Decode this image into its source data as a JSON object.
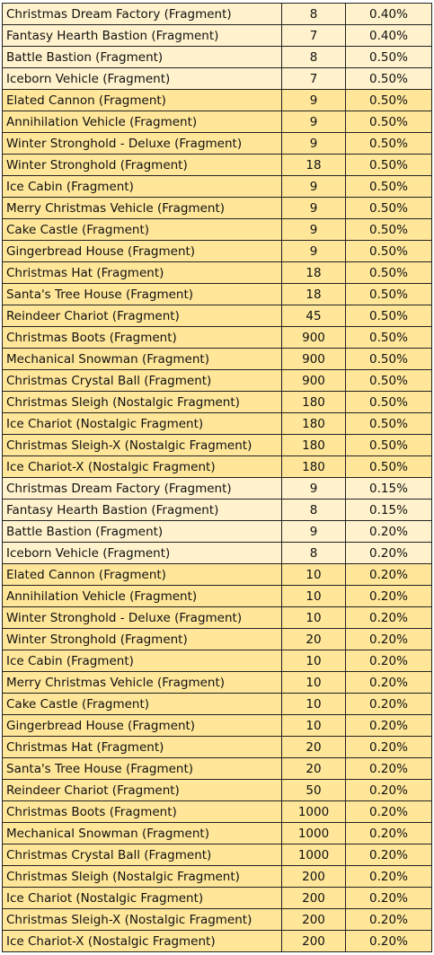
{
  "table": {
    "rows": [
      [
        "Christmas Dream Factory (Fragment)",
        "8",
        "0.40%"
      ],
      [
        "Fantasy Hearth Bastion (Fragment)",
        "7",
        "0.40%"
      ],
      [
        "Battle Bastion (Fragment)",
        "8",
        "0.50%"
      ],
      [
        "Iceborn Vehicle (Fragment)",
        "7",
        "0.50%"
      ],
      [
        "Elated Cannon (Fragment)",
        "9",
        "0.50%"
      ],
      [
        "Annihilation Vehicle (Fragment)",
        "9",
        "0.50%"
      ],
      [
        "Winter Stronghold - Deluxe (Fragment)",
        "9",
        "0.50%"
      ],
      [
        "Winter Stronghold (Fragment)",
        "18",
        "0.50%"
      ],
      [
        "Ice Cabin (Fragment)",
        "9",
        "0.50%"
      ],
      [
        "Merry Christmas Vehicle (Fragment)",
        "9",
        "0.50%"
      ],
      [
        "Cake Castle (Fragment)",
        "9",
        "0.50%"
      ],
      [
        "Gingerbread House (Fragment)",
        "9",
        "0.50%"
      ],
      [
        "Christmas Hat (Fragment)",
        "18",
        "0.50%"
      ],
      [
        "Santa's Tree House (Fragment)",
        "18",
        "0.50%"
      ],
      [
        "Reindeer Chariot (Fragment)",
        "45",
        "0.50%"
      ],
      [
        "Christmas Boots (Fragment)",
        "900",
        "0.50%"
      ],
      [
        "Mechanical Snowman (Fragment)",
        "900",
        "0.50%"
      ],
      [
        "Christmas Crystal Ball (Fragment)",
        "900",
        "0.50%"
      ],
      [
        "Christmas Sleigh (Nostalgic Fragment)",
        "180",
        "0.50%"
      ],
      [
        "Ice Chariot (Nostalgic Fragment)",
        "180",
        "0.50%"
      ],
      [
        "Christmas Sleigh-X (Nostalgic Fragment)",
        "180",
        "0.50%"
      ],
      [
        "Ice Chariot-X (Nostalgic Fragment)",
        "180",
        "0.50%"
      ],
      [
        "Christmas Dream Factory (Fragment)",
        "9",
        "0.15%"
      ],
      [
        "Fantasy Hearth Bastion (Fragment)",
        "8",
        "0.15%"
      ],
      [
        "Battle Bastion (Fragment)",
        "9",
        "0.20%"
      ],
      [
        "Iceborn Vehicle (Fragment)",
        "8",
        "0.20%"
      ],
      [
        "Elated Cannon (Fragment)",
        "10",
        "0.20%"
      ],
      [
        "Annihilation Vehicle (Fragment)",
        "10",
        "0.20%"
      ],
      [
        "Winter Stronghold - Deluxe (Fragment)",
        "10",
        "0.20%"
      ],
      [
        "Winter Stronghold (Fragment)",
        "20",
        "0.20%"
      ],
      [
        "Ice Cabin (Fragment)",
        "10",
        "0.20%"
      ],
      [
        "Merry Christmas Vehicle (Fragment)",
        "10",
        "0.20%"
      ],
      [
        "Cake Castle (Fragment)",
        "10",
        "0.20%"
      ],
      [
        "Gingerbread House (Fragment)",
        "10",
        "0.20%"
      ],
      [
        "Christmas Hat (Fragment)",
        "20",
        "0.20%"
      ],
      [
        "Santa's Tree House (Fragment)",
        "20",
        "0.20%"
      ],
      [
        "Reindeer Chariot (Fragment)",
        "50",
        "0.20%"
      ],
      [
        "Christmas Boots (Fragment)",
        "1000",
        "0.20%"
      ],
      [
        "Mechanical Snowman (Fragment)",
        "1000",
        "0.20%"
      ],
      [
        "Christmas Crystal Ball (Fragment)",
        "1000",
        "0.20%"
      ],
      [
        "Christmas Sleigh (Nostalgic Fragment)",
        "200",
        "0.20%"
      ],
      [
        "Ice Chariot (Nostalgic Fragment)",
        "200",
        "0.20%"
      ],
      [
        "Christmas Sleigh-X (Nostalgic Fragment)",
        "200",
        "0.20%"
      ],
      [
        "Ice Chariot-X (Nostalgic Fragment)",
        "200",
        "0.20%"
      ]
    ]
  }
}
